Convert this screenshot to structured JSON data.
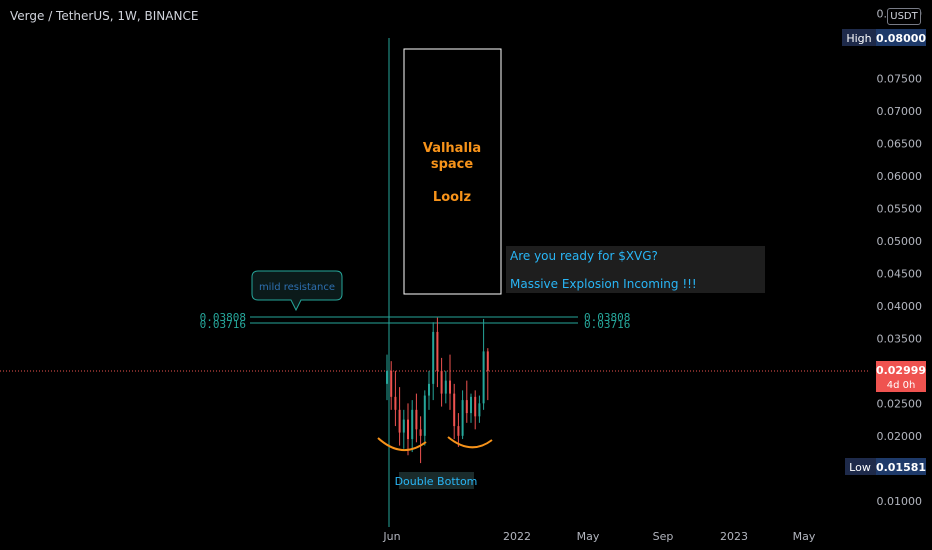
{
  "header": {
    "symbol_title": "Verge / TetherUS, 1W, BINANCE",
    "currency": "USDT"
  },
  "colors": {
    "background": "#000000",
    "axis_text": "#b2b5be",
    "bull": "#26a69a",
    "bear": "#ef5350",
    "level_line": "#26a69a",
    "annotation_orange": "#f7931a",
    "annotation_cyan": "#29b6f6",
    "high_low_badge": "#1e2a4a",
    "last_price_badge": "#ef5350"
  },
  "price_axis": {
    "ticks": [
      "0.08500",
      "0.07500",
      "0.07000",
      "0.06500",
      "0.06000",
      "0.05500",
      "0.05000",
      "0.04500",
      "0.04000",
      "0.03500",
      "0.02500",
      "0.02000",
      "0.01000"
    ],
    "high_label": "High",
    "high_value": "0.08000",
    "low_label": "Low",
    "low_value": "0.01581",
    "last_value": "0.02999",
    "countdown": "4d 0h"
  },
  "time_axis": {
    "labels": [
      "Jun",
      "2022",
      "May",
      "Sep",
      "2023",
      "May"
    ]
  },
  "annotations": {
    "rect_line1": "Valhalla",
    "rect_line2": "space",
    "rect_line3": "Loolz",
    "callout_line1": "Are you ready for $XVG?",
    "callout_line2": "Massive Explosion Incoming !!!",
    "resistance_label": "mild resistance",
    "double_bottom": "Double Bottom",
    "level_upper": "0.03808",
    "level_lower": "0.03716"
  },
  "chart_data": {
    "type": "candlestick",
    "title": "Verge / TetherUS, 1W, BINANCE",
    "ylim": [
      0.0095,
      0.0865
    ],
    "horizontal_levels": [
      0.03808,
      0.03716
    ],
    "last_price": 0.02999,
    "high": 0.08,
    "low": 0.01581,
    "candles": [
      {
        "o": 0.028,
        "h": 0.0325,
        "c": 0.03,
        "l": 0.0255
      },
      {
        "o": 0.03,
        "h": 0.0315,
        "c": 0.026,
        "l": 0.024
      },
      {
        "o": 0.026,
        "h": 0.03,
        "c": 0.024,
        "l": 0.0215
      },
      {
        "o": 0.024,
        "h": 0.0275,
        "c": 0.0205,
        "l": 0.0185
      },
      {
        "o": 0.0205,
        "h": 0.024,
        "c": 0.0225,
        "l": 0.018
      },
      {
        "o": 0.0225,
        "h": 0.025,
        "c": 0.0195,
        "l": 0.017
      },
      {
        "o": 0.0195,
        "h": 0.0255,
        "c": 0.024,
        "l": 0.0175
      },
      {
        "o": 0.024,
        "h": 0.0265,
        "c": 0.021,
        "l": 0.019
      },
      {
        "o": 0.021,
        "h": 0.023,
        "c": 0.02,
        "l": 0.0158
      },
      {
        "o": 0.02,
        "h": 0.027,
        "c": 0.0262,
        "l": 0.0185
      },
      {
        "o": 0.0262,
        "h": 0.03,
        "c": 0.028,
        "l": 0.024
      },
      {
        "o": 0.028,
        "h": 0.0375,
        "c": 0.036,
        "l": 0.0255
      },
      {
        "o": 0.036,
        "h": 0.0382,
        "c": 0.03,
        "l": 0.0275
      },
      {
        "o": 0.03,
        "h": 0.032,
        "c": 0.0265,
        "l": 0.0245
      },
      {
        "o": 0.0265,
        "h": 0.03,
        "c": 0.0285,
        "l": 0.025
      },
      {
        "o": 0.0285,
        "h": 0.0325,
        "c": 0.0265,
        "l": 0.024
      },
      {
        "o": 0.0265,
        "h": 0.028,
        "c": 0.0215,
        "l": 0.0195
      },
      {
        "o": 0.0215,
        "h": 0.0235,
        "c": 0.02,
        "l": 0.0183
      },
      {
        "o": 0.02,
        "h": 0.027,
        "c": 0.0255,
        "l": 0.0195
      },
      {
        "o": 0.0255,
        "h": 0.0285,
        "c": 0.0235,
        "l": 0.022
      },
      {
        "o": 0.0235,
        "h": 0.0265,
        "c": 0.026,
        "l": 0.022
      },
      {
        "o": 0.026,
        "h": 0.027,
        "c": 0.023,
        "l": 0.021
      },
      {
        "o": 0.023,
        "h": 0.0262,
        "c": 0.025,
        "l": 0.022
      },
      {
        "o": 0.025,
        "h": 0.038,
        "c": 0.033,
        "l": 0.024
      },
      {
        "o": 0.033,
        "h": 0.0335,
        "c": 0.03,
        "l": 0.0255
      }
    ]
  }
}
